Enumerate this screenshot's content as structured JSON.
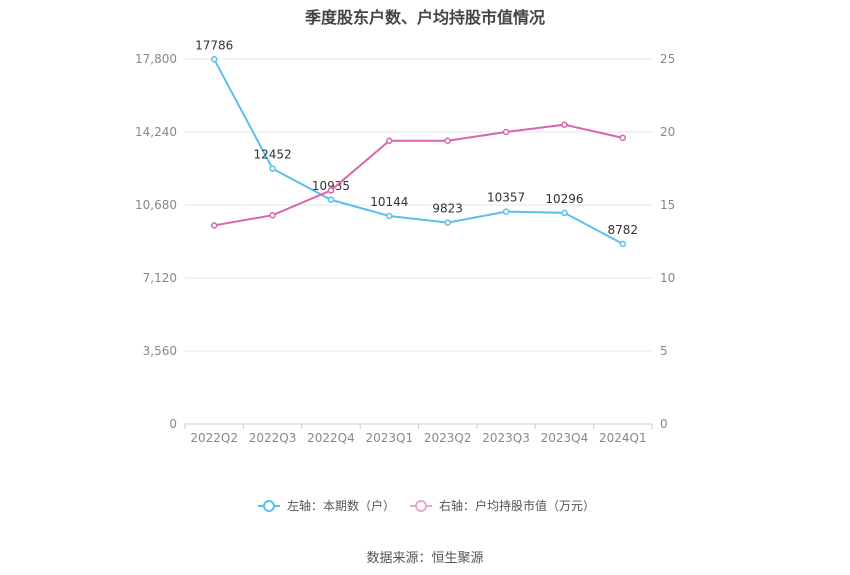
{
  "chart_data": {
    "type": "line",
    "title": "季度股东户数、户均持股市值情况",
    "categories": [
      "2022Q2",
      "2022Q3",
      "2022Q4",
      "2023Q1",
      "2023Q2",
      "2023Q3",
      "2023Q4",
      "2024Q1"
    ],
    "left_axis": {
      "ticks": [
        "0",
        "3,560",
        "7,120",
        "10,680",
        "14,240",
        "17,800"
      ],
      "ylim": [
        0,
        17800
      ]
    },
    "right_axis": {
      "ticks": [
        "0",
        "5",
        "10",
        "15",
        "20",
        "25"
      ],
      "ylim": [
        0,
        25
      ]
    },
    "series": [
      {
        "name": "左轴：本期数（户）",
        "axis": "left",
        "color": "#5bc0eb",
        "values": [
          17786,
          12452,
          10935,
          10144,
          9823,
          10357,
          10296,
          8782
        ],
        "labels": [
          "17786",
          "12452",
          "10935",
          "10144",
          "9823",
          "10357",
          "10296",
          "8782"
        ]
      },
      {
        "name": "右轴：户均持股市值（万元）",
        "axis": "right",
        "color": "#d966a8",
        "values": [
          13.6,
          14.3,
          16.0,
          19.4,
          19.4,
          20.0,
          20.5,
          19.6
        ]
      }
    ],
    "grid": true,
    "legend": "bottom"
  },
  "footer": {
    "source": "数据来源：恒生聚源"
  }
}
